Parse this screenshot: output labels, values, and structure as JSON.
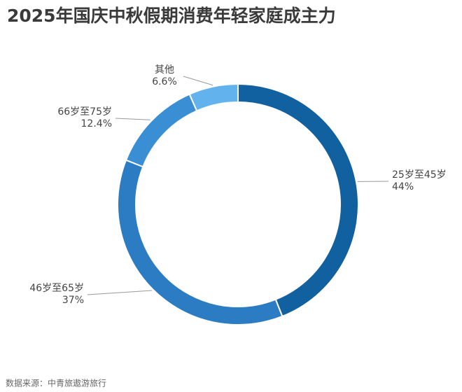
{
  "chart_data": {
    "type": "donut",
    "title": "2025年国庆中秋假期消费年轻家庭成主力",
    "categories": [
      "25岁至45岁",
      "46岁至65岁",
      "66岁至75岁",
      "其他"
    ],
    "values": [
      44,
      37,
      12.4,
      6.6
    ],
    "value_labels": [
      "44%",
      "37%",
      "12.4%",
      "6.6%"
    ],
    "colors": [
      "#11609f",
      "#2b7cc2",
      "#3a8ed4",
      "#62b2ee"
    ],
    "source": "数据来源：中青旅遨游旅行"
  }
}
